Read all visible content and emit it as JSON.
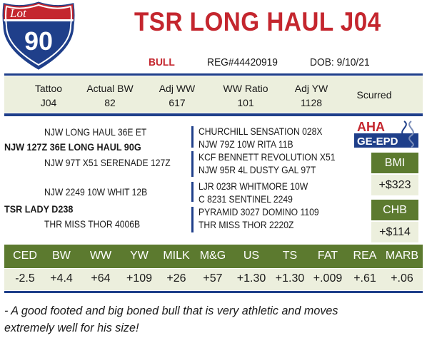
{
  "lot": {
    "label": "Lot",
    "number": "90"
  },
  "animal": {
    "name": "TSR LONG HAUL J04",
    "sex": "BULL",
    "reg": "REG#44420919",
    "dob": "DOB: 9/10/21"
  },
  "stats": [
    {
      "label": "Tattoo",
      "value": "J04"
    },
    {
      "label": "Actual BW",
      "value": "82"
    },
    {
      "label": "Adj WW",
      "value": "617"
    },
    {
      "label": "WW Ratio",
      "value": "101"
    },
    {
      "label": "Adj YW",
      "value": "1128"
    },
    {
      "label": "Scurred",
      "value": ""
    }
  ],
  "pedigree": {
    "sire": "NJW 127Z 36E LONG HAUL 90G",
    "sire_sire": "NJW LONG HAUL 36E ET",
    "sire_dam": "NJW 97T X51 SERENADE 127Z",
    "dam": "TSR LADY D238",
    "dam_sire": "NJW 2249 10W WHIT 12B",
    "dam_dam": "THR MISS THOR 4006B",
    "ancestors_sire_side": [
      "CHURCHILL SENSATION 028X",
      "NJW 79Z 10W RITA 11B",
      "KCF BENNETT REVOLUTION X51",
      "NJW 95R 4L DUSTY GAL 97T"
    ],
    "ancestors_dam_side": [
      "LJR 023R WHITMORE 10W",
      "C 8231 SENTINEL 2249",
      "PYRAMID 3027 DOMINO 1109",
      "THR MISS THOR 2220Z"
    ]
  },
  "logo": {
    "line1": "AHA",
    "line2": "GE-EPD"
  },
  "indexes": [
    {
      "label": "BMI",
      "value": "+$323"
    },
    {
      "label": "CHB",
      "value": "+$114"
    }
  ],
  "epds": [
    {
      "label": "CED",
      "value": "-2.5"
    },
    {
      "label": "BW",
      "value": "+4.4"
    },
    {
      "label": "WW",
      "value": "+64"
    },
    {
      "label": "YW",
      "value": "+109"
    },
    {
      "label": "MILK",
      "value": "+26"
    },
    {
      "label": "M&G",
      "value": "+57"
    },
    {
      "label": "US",
      "value": "+1.30"
    },
    {
      "label": "TS",
      "value": "+1.30"
    },
    {
      "label": "FAT",
      "value": "+.009"
    },
    {
      "label": "REA",
      "value": "+.61"
    },
    {
      "label": "MARB",
      "value": "+.06"
    }
  ],
  "comment": "- A good footed and big boned bull that is very athletic and moves extremely well for his size!",
  "colors": {
    "red": "#c4262e",
    "navy": "#1f3f8a",
    "green": "#5c7a2f",
    "cream": "#ecefdd"
  }
}
